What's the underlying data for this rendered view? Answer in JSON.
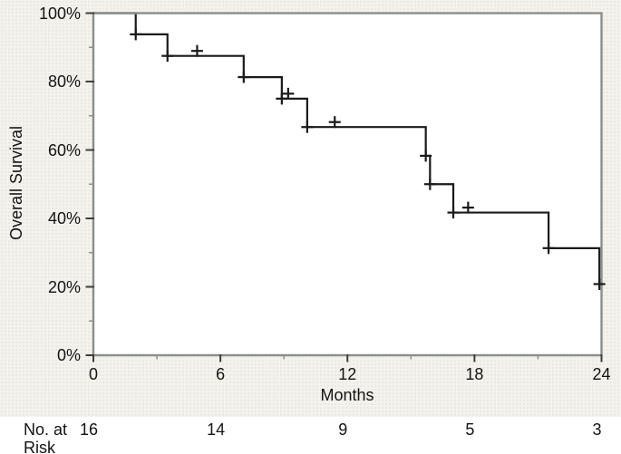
{
  "figure": {
    "y_axis_title": "Overall Survival",
    "x_axis_title": "Months",
    "at_risk_label_line1": "No. at",
    "at_risk_label_line2": "Risk"
  },
  "chart_data": {
    "type": "line",
    "subtype": "kaplan-meier-step",
    "title": "",
    "xlabel": "Months",
    "ylabel": "Overall Survival",
    "xlim": [
      0,
      24
    ],
    "ylim": [
      0,
      100
    ],
    "grid": "off",
    "legend": "none",
    "x_major_ticks": [
      0,
      6,
      12,
      18,
      24
    ],
    "x_tick_labels": [
      "0",
      "6",
      "12",
      "18",
      "24"
    ],
    "x_minor_ticks": [
      3,
      9,
      15,
      21
    ],
    "y_major_ticks": [
      100,
      80,
      60,
      40,
      20,
      0
    ],
    "y_tick_labels": [
      "100%",
      "80%",
      "60%",
      "40%",
      "20%",
      "0%"
    ],
    "y_minor_ticks": [
      90,
      70,
      50,
      30,
      10
    ],
    "series": [
      {
        "name": "Overall Survival",
        "km_steps": [
          {
            "month": 0,
            "survival_pct": 100
          },
          {
            "month": 2.0,
            "survival_pct": 93.8
          },
          {
            "month": 3.5,
            "survival_pct": 87.5
          },
          {
            "month": 7.1,
            "survival_pct": 81.3
          },
          {
            "month": 8.9,
            "survival_pct": 75.0
          },
          {
            "month": 10.1,
            "survival_pct": 66.7
          },
          {
            "month": 15.7,
            "survival_pct": 58.3
          },
          {
            "month": 15.9,
            "survival_pct": 50.0
          },
          {
            "month": 17.0,
            "survival_pct": 41.7
          },
          {
            "month": 21.5,
            "survival_pct": 31.3
          },
          {
            "month": 23.9,
            "survival_pct": 20.8
          }
        ],
        "censor_marks": [
          {
            "month": 2.0,
            "survival_pct": 93.8,
            "placement": "on-line"
          },
          {
            "month": 3.5,
            "survival_pct": 87.5,
            "placement": "on-line"
          },
          {
            "month": 4.9,
            "survival_pct": 87.5,
            "placement": "above-line"
          },
          {
            "month": 7.1,
            "survival_pct": 81.3,
            "placement": "on-line"
          },
          {
            "month": 8.9,
            "survival_pct": 75.0,
            "placement": "on-line"
          },
          {
            "month": 9.2,
            "survival_pct": 75.0,
            "placement": "above-line"
          },
          {
            "month": 10.1,
            "survival_pct": 66.7,
            "placement": "on-line"
          },
          {
            "month": 11.4,
            "survival_pct": 66.7,
            "placement": "above-line"
          },
          {
            "month": 15.7,
            "survival_pct": 58.3,
            "placement": "on-line"
          },
          {
            "month": 15.9,
            "survival_pct": 50.0,
            "placement": "on-line"
          },
          {
            "month": 17.0,
            "survival_pct": 41.7,
            "placement": "on-line"
          },
          {
            "month": 17.7,
            "survival_pct": 41.7,
            "placement": "above-line"
          },
          {
            "month": 21.5,
            "survival_pct": 31.3,
            "placement": "on-line"
          },
          {
            "month": 23.9,
            "survival_pct": 20.8,
            "placement": "on-line"
          }
        ]
      }
    ],
    "at_risk": {
      "months": [
        0,
        6,
        12,
        18,
        24
      ],
      "counts": [
        "16",
        "14",
        "9",
        "5",
        "3"
      ]
    },
    "colors": {
      "curve": "#1a1a1a",
      "frame": "#8b8e8b",
      "major_tick": "#3e3e3e",
      "minor_tick": "#8f8f8f",
      "text": "#141414",
      "figure_background": "#f3f2ec",
      "plot_background": "#ffffff"
    }
  }
}
